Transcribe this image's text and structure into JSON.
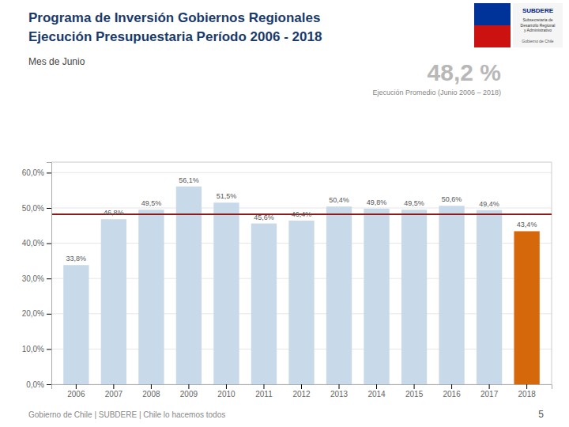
{
  "chart_data": {
    "type": "bar",
    "title": "Programa de Inversión Gobiernos Regionales\nEjecución Presupuestaria Período 2006 - 2018",
    "subtitle": "Mes de Junio",
    "categories": [
      "2006",
      "2007",
      "2008",
      "2009",
      "2010",
      "2011",
      "2012",
      "2013",
      "2014",
      "2015",
      "2016",
      "2017",
      "2018"
    ],
    "values": [
      33.8,
      46.8,
      49.5,
      56.1,
      51.5,
      45.6,
      46.4,
      50.4,
      49.8,
      49.5,
      50.6,
      49.4,
      43.4
    ],
    "value_labels": [
      "33,8%",
      "46,8%",
      "49,5%",
      "56,1%",
      "51,5%",
      "45,6%",
      "46,4%",
      "50,4%",
      "49,8%",
      "49,5%",
      "50,6%",
      "49,4%",
      "43,4%"
    ],
    "colors": [
      "#c8d9ea",
      "#c8d9ea",
      "#c8d9ea",
      "#c8d9ea",
      "#c8d9ea",
      "#c8d9ea",
      "#c8d9ea",
      "#c8d9ea",
      "#c8d9ea",
      "#c8d9ea",
      "#c8d9ea",
      "#c8d9ea",
      "#d4680a"
    ],
    "data_labels": true,
    "average": {
      "value": 48.2,
      "label": "48,2 %",
      "caption": "Ejecución Promedio (Junio 2006 – 2018)",
      "color": "#8b1a1a"
    },
    "ylim": [
      0,
      63
    ],
    "yticks": [
      {
        "value": 0,
        "label": "0,0%"
      },
      {
        "value": 10,
        "label": "10,0%"
      },
      {
        "value": 20,
        "label": "20,0%"
      },
      {
        "value": 30,
        "label": "30,0%"
      },
      {
        "value": 40,
        "label": "40,0%"
      },
      {
        "value": 50,
        "label": "50,0%"
      },
      {
        "value": 60,
        "label": "60,0%"
      }
    ],
    "grid": true,
    "annotations": [
      "SUBDERE",
      "Subsecretaría de\nDesarrollo Regional\ny Administrativo",
      "Gobierno de Chile",
      "Gobierno de Chile | SUBDERE | Chile lo hacemos todos",
      "5"
    ]
  }
}
